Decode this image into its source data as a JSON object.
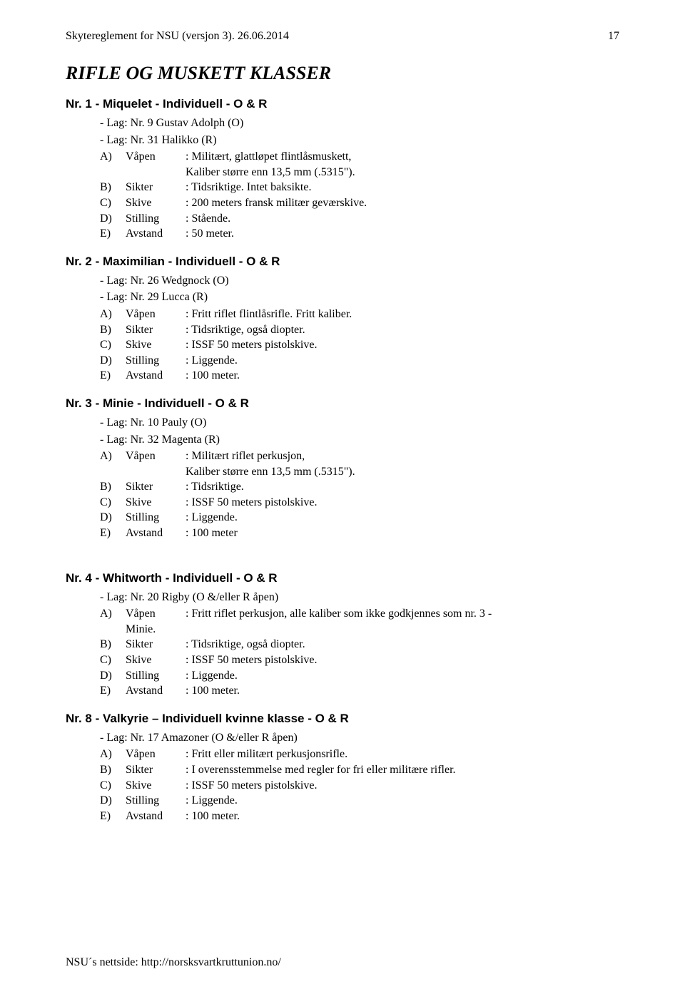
{
  "header": {
    "left": "Skytereglement for NSU (versjon 3). 26.06.2014",
    "page_number": "17"
  },
  "section_title": "RIFLE OG MUSKETT KLASSER",
  "entries": [
    {
      "title": "Nr. 1 - Miquelet - Individuell - O & R",
      "lags": [
        "- Lag: Nr. 9 Gustav Adolph (O)",
        "- Lag: Nr. 31 Halikko (R)"
      ],
      "fields": [
        {
          "letter": "A)",
          "label": "Våpen",
          "value": ": Militært, glattløpet flintlåsmuskett,",
          "cont": "Kaliber større enn 13,5 mm (.5315\")."
        },
        {
          "letter": "B)",
          "label": "Sikter",
          "value": ": Tidsriktige. Intet baksikte."
        },
        {
          "letter": "C)",
          "label": "Skive",
          "value": ": 200 meters fransk militær geværskive."
        },
        {
          "letter": "D)",
          "label": "Stilling",
          "value": ": Stående."
        },
        {
          "letter": "E)",
          "label": "Avstand",
          "value": ": 50 meter."
        }
      ]
    },
    {
      "title": "Nr. 2 - Maximilian - Individuell - O & R",
      "lags": [
        "- Lag: Nr. 26 Wedgnock (O)",
        "- Lag: Nr. 29 Lucca (R)"
      ],
      "fields": [
        {
          "letter": "A)",
          "label": "Våpen",
          "value": ": Fritt riflet flintlåsrifle. Fritt kaliber."
        },
        {
          "letter": "B)",
          "label": "Sikter",
          "value": ": Tidsriktige, også diopter."
        },
        {
          "letter": "C)",
          "label": "Skive",
          "value": ": ISSF 50 meters pistolskive."
        },
        {
          "letter": "D)",
          "label": "Stilling",
          "value": ": Liggende."
        },
        {
          "letter": "E)",
          "label": "Avstand",
          "value": ": 100 meter."
        }
      ]
    },
    {
      "title": "Nr. 3 - Minie - Individuell - O & R",
      "lags": [
        "- Lag: Nr. 10 Pauly (O)",
        "- Lag: Nr. 32 Magenta (R)"
      ],
      "fields": [
        {
          "letter": "A)",
          "label": "Våpen",
          "value": ": Militært riflet perkusjon,",
          "cont": "Kaliber større enn 13,5 mm (.5315\")."
        },
        {
          "letter": "B)",
          "label": "Sikter",
          "value": ": Tidsriktige."
        },
        {
          "letter": "C)",
          "label": "Skive",
          "value": ": ISSF 50 meters pistolskive."
        },
        {
          "letter": "D)",
          "label": "Stilling",
          "value": ": Liggende."
        },
        {
          "letter": "E)",
          "label": "Avstand",
          "value": ": 100 meter"
        }
      ]
    },
    {
      "title": "Nr. 4 - Whitworth - Individuell - O & R",
      "lags": [
        "- Lag: Nr. 20 Rigby (O &/eller R åpen)"
      ],
      "fields": [
        {
          "letter": "A)",
          "label": "Våpen",
          "value": ": Fritt riflet perkusjon, alle kaliber som ikke godkjennes som nr. 3 -",
          "cont_label": "Minie."
        },
        {
          "letter": "B)",
          "label": "Sikter",
          "value": ": Tidsriktige, også diopter."
        },
        {
          "letter": "C)",
          "label": "Skive",
          "value": ": ISSF 50 meters pistolskive."
        },
        {
          "letter": "D)",
          "label": "Stilling",
          "value": ": Liggende."
        },
        {
          "letter": "E)",
          "label": "Avstand",
          "value": ": 100 meter."
        }
      ]
    },
    {
      "title": "Nr. 8 - Valkyrie – Individuell kvinne klasse - O & R",
      "lags": [
        "- Lag: Nr. 17 Amazoner (O &/eller R åpen)"
      ],
      "fields": [
        {
          "letter": "A)",
          "label": "Våpen",
          "value": ": Fritt eller militært perkusjonsrifle."
        },
        {
          "letter": "B)",
          "label": "Sikter",
          "value": ": I overensstemmelse med regler for fri eller militære rifler."
        },
        {
          "letter": "C)",
          "label": "Skive",
          "value": ": ISSF 50 meters pistolskive."
        },
        {
          "letter": "D)",
          "label": "Stilling",
          "value": ": Liggende."
        },
        {
          "letter": "E)",
          "label": "Avstand",
          "value": ": 100 meter."
        }
      ]
    }
  ],
  "footer": "NSU´s nettside: http://norsksvartkruttunion.no/"
}
